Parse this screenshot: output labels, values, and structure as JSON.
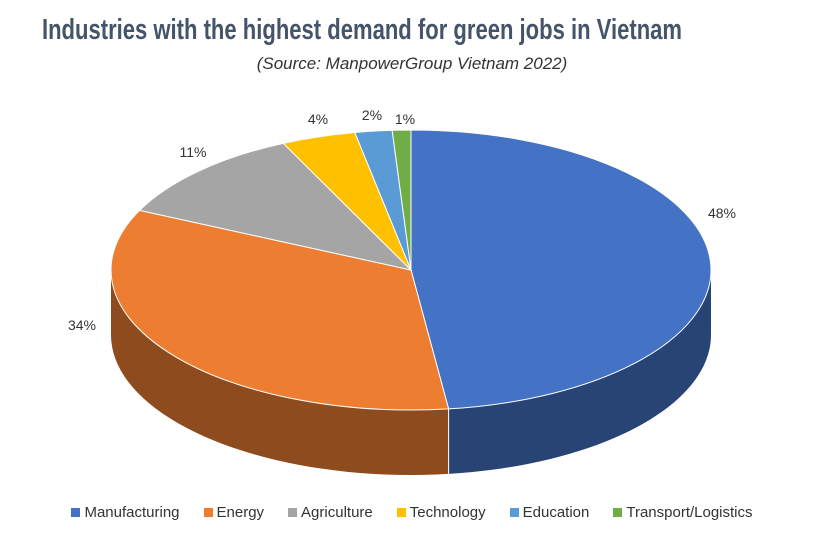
{
  "chart_data": {
    "type": "pie",
    "title": "Industries with the highest demand for green jobs in Vietnam",
    "subtitle": "(Source: ManpowerGroup Vietnam 2022)",
    "style": "3d",
    "legend_position": "bottom",
    "slices": [
      {
        "label": "Manufacturing",
        "value": 48,
        "display": "48%",
        "color": "#4472C4"
      },
      {
        "label": "Energy",
        "value": 34,
        "display": "34%",
        "color": "#ED7D31"
      },
      {
        "label": "Agriculture",
        "value": 11,
        "display": "11%",
        "color": "#A5A5A5"
      },
      {
        "label": "Technology",
        "value": 4,
        "display": "4%",
        "color": "#FFC000"
      },
      {
        "label": "Education",
        "value": 2,
        "display": "2%",
        "color": "#5B9BD5"
      },
      {
        "label": "Transport/Logistics",
        "value": 1,
        "display": "1%",
        "color": "#70AD47"
      }
    ]
  }
}
